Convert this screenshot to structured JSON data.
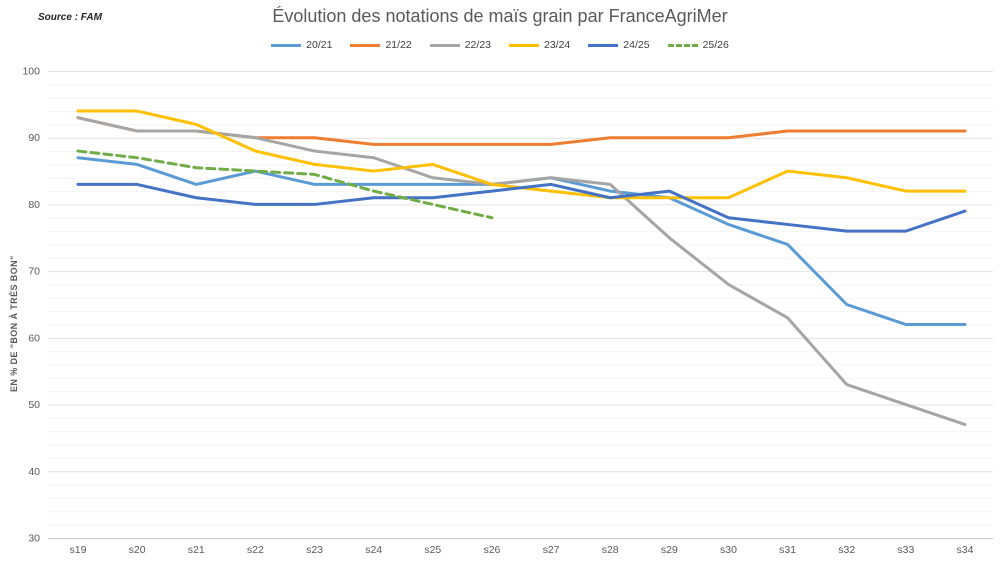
{
  "header": {
    "source": "Source : FAM"
  },
  "chart_data": {
    "type": "line",
    "title": "Évolution des notations de maïs grain par FranceAgriMer",
    "xlabel": "",
    "ylabel": "EN % DE \"BON À TRÈS BON\"",
    "categories": [
      "s19",
      "s20",
      "s21",
      "s22",
      "s23",
      "s24",
      "s25",
      "s26",
      "s27",
      "s28",
      "s29",
      "s30",
      "s31",
      "s32",
      "s33",
      "s34"
    ],
    "ylim": [
      30,
      100
    ],
    "ytick_step": 10,
    "minor_ytick_step": 2,
    "grid": true,
    "legend_position": "top",
    "series": [
      {
        "name": "20/21",
        "color": "#5B9BD5",
        "dashed": false,
        "values": [
          87,
          86,
          83,
          85,
          83,
          83,
          83,
          83,
          84,
          82,
          81,
          77,
          74,
          65,
          62,
          62
        ]
      },
      {
        "name": "21/22",
        "color": "#ED7D31",
        "dashed": false,
        "values": [
          93,
          91,
          91,
          90,
          90,
          89,
          89,
          89,
          89,
          90,
          90,
          90,
          91,
          91,
          91,
          91
        ]
      },
      {
        "name": "22/23",
        "color": "#A5A5A5",
        "dashed": false,
        "values": [
          93,
          91,
          91,
          90,
          88,
          87,
          84,
          83,
          84,
          83,
          75,
          68,
          63,
          53,
          50,
          47
        ]
      },
      {
        "name": "23/24",
        "color": "#FFC000",
        "dashed": false,
        "values": [
          94,
          94,
          92,
          88,
          86,
          85,
          86,
          83,
          82,
          81,
          81,
          81,
          85,
          84,
          82,
          82
        ]
      },
      {
        "name": "24/25",
        "color": "#4472C4",
        "dashed": false,
        "values": [
          83,
          83,
          81,
          80,
          80,
          81,
          81,
          82,
          83,
          81,
          82,
          78,
          77,
          76,
          76,
          79
        ]
      },
      {
        "name": "25/26",
        "color": "#70AD47",
        "dashed": true,
        "values": [
          88,
          87,
          85.5,
          85,
          84.5,
          82,
          80,
          78
        ]
      }
    ],
    "axis_colors": {
      "major_grid": "#E2E2E2",
      "minor_grid": "#F4F4F4",
      "axis_line": "#C9C9C9",
      "tick_text": "#595959"
    }
  }
}
